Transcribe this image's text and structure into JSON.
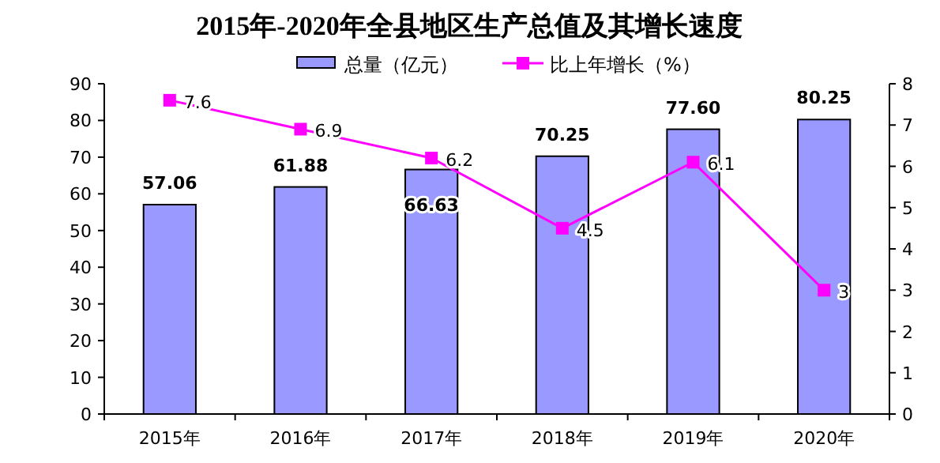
{
  "chart_data": {
    "type": "bar",
    "title": "2015年-2020年全县地区生产总值及其增长速度",
    "categories": [
      "2015年",
      "2016年",
      "2017年",
      "2018年",
      "2019年",
      "2020年"
    ],
    "series": [
      {
        "name": "总量（亿元）",
        "color": "#9999ff",
        "values": [
          57.06,
          61.88,
          66.63,
          70.25,
          77.6,
          80.25
        ],
        "value_labels": [
          "57.06",
          "61.88",
          "66.63",
          "70.25",
          "77.60",
          "80.25"
        ]
      },
      {
        "name": "比上年增长（%）",
        "type": "line",
        "axis": "y2",
        "color": "#ff00ff",
        "values": [
          7.6,
          6.9,
          6.2,
          4.5,
          6.1,
          3
        ],
        "value_labels": [
          "7.6",
          "6.9",
          "6.2",
          "4.5",
          "6.1",
          "3"
        ]
      }
    ],
    "ylim": [
      0,
      90
    ],
    "yticks": [
      0,
      10,
      20,
      30,
      40,
      50,
      60,
      70,
      80,
      90
    ],
    "y2lim": [
      0,
      8
    ],
    "y2ticks": [
      0,
      1,
      2,
      3,
      4,
      5,
      6,
      7,
      8
    ],
    "legend": "top",
    "marker": "square",
    "line_style": "solid",
    "grid": false
  }
}
